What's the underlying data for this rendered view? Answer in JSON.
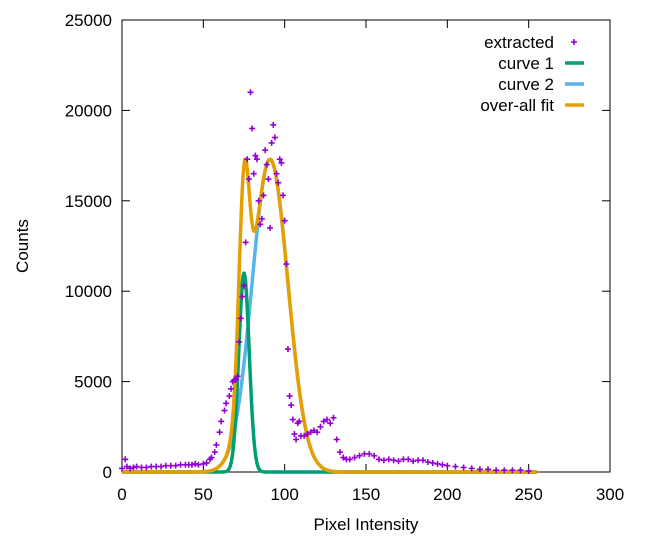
{
  "chart_data": {
    "type": "line",
    "xlabel": "Pixel Intensity",
    "ylabel": "Counts",
    "xlim": [
      0,
      300
    ],
    "ylim": [
      0,
      25000
    ],
    "xticks": [
      "0",
      "50",
      "100",
      "150",
      "200",
      "250",
      "300"
    ],
    "yticks": [
      "0",
      "5000",
      "10000",
      "15000",
      "20000",
      "25000"
    ],
    "grid": false,
    "legend_position": "top-right",
    "colors": {
      "extracted": "#9400d3",
      "curve 1": "#009e73",
      "curve 2": "#56b4e9",
      "over-all fit": "#e69f00"
    },
    "series": [
      {
        "name": "extracted",
        "type": "scatter",
        "x": [
          0,
          2,
          3,
          5,
          7,
          9,
          12,
          15,
          18,
          21,
          24,
          27,
          30,
          33,
          36,
          39,
          41,
          43,
          45,
          47,
          50,
          52,
          54,
          55,
          57,
          58,
          60,
          61,
          63,
          64,
          66,
          67,
          68,
          69,
          70,
          71,
          72,
          73,
          74,
          75,
          76,
          77,
          78,
          79,
          80,
          81,
          82,
          83,
          84,
          85,
          86,
          87,
          88,
          89,
          90,
          91,
          92,
          93,
          94,
          95,
          96,
          97,
          98,
          99,
          100,
          101,
          102,
          103,
          104,
          105,
          106,
          107,
          108,
          109,
          110,
          112,
          114,
          116,
          118,
          120,
          122,
          124,
          126,
          128,
          130,
          132,
          134,
          136,
          138,
          140,
          143,
          146,
          149,
          152,
          155,
          158,
          161,
          164,
          167,
          170,
          173,
          176,
          179,
          182,
          185,
          188,
          191,
          194,
          197,
          200,
          205,
          210,
          215,
          220,
          225,
          230,
          235,
          240,
          245,
          250
        ],
        "y": [
          200,
          700,
          300,
          200,
          250,
          300,
          250,
          250,
          300,
          300,
          300,
          350,
          350,
          350,
          400,
          400,
          400,
          400,
          450,
          400,
          450,
          500,
          700,
          800,
          1100,
          1500,
          2200,
          2800,
          3400,
          3800,
          4200,
          4600,
          5000,
          5100,
          5100,
          5300,
          7200,
          8500,
          9700,
          10300,
          12700,
          17300,
          16200,
          21000,
          19000,
          16500,
          17500,
          17300,
          15000,
          13700,
          14000,
          15300,
          17800,
          17000,
          16200,
          13500,
          18200,
          19200,
          18500,
          16500,
          16000,
          17300,
          17100,
          15300,
          13900,
          11500,
          6800,
          4200,
          3700,
          2900,
          2100,
          1800,
          2700,
          2800,
          2000,
          2000,
          2100,
          2200,
          2300,
          2200,
          2500,
          2800,
          2900,
          2700,
          3000,
          1800,
          1100,
          800,
          700,
          700,
          800,
          900,
          1000,
          1000,
          900,
          700,
          650,
          700,
          650,
          600,
          700,
          700,
          600,
          650,
          650,
          550,
          500,
          450,
          400,
          350,
          300,
          250,
          200,
          150,
          150,
          100,
          100,
          100,
          100,
          50
        ]
      },
      {
        "name": "curve 1",
        "type": "gaussian",
        "amplitude": 11000,
        "center": 75,
        "sigma": 3.2
      },
      {
        "name": "curve 2",
        "type": "gaussian",
        "amplitude": 17300,
        "center": 91,
        "sigma": 11
      },
      {
        "name": "over-all fit",
        "type": "sum",
        "of": [
          "curve 1",
          "curve 2"
        ]
      }
    ]
  }
}
